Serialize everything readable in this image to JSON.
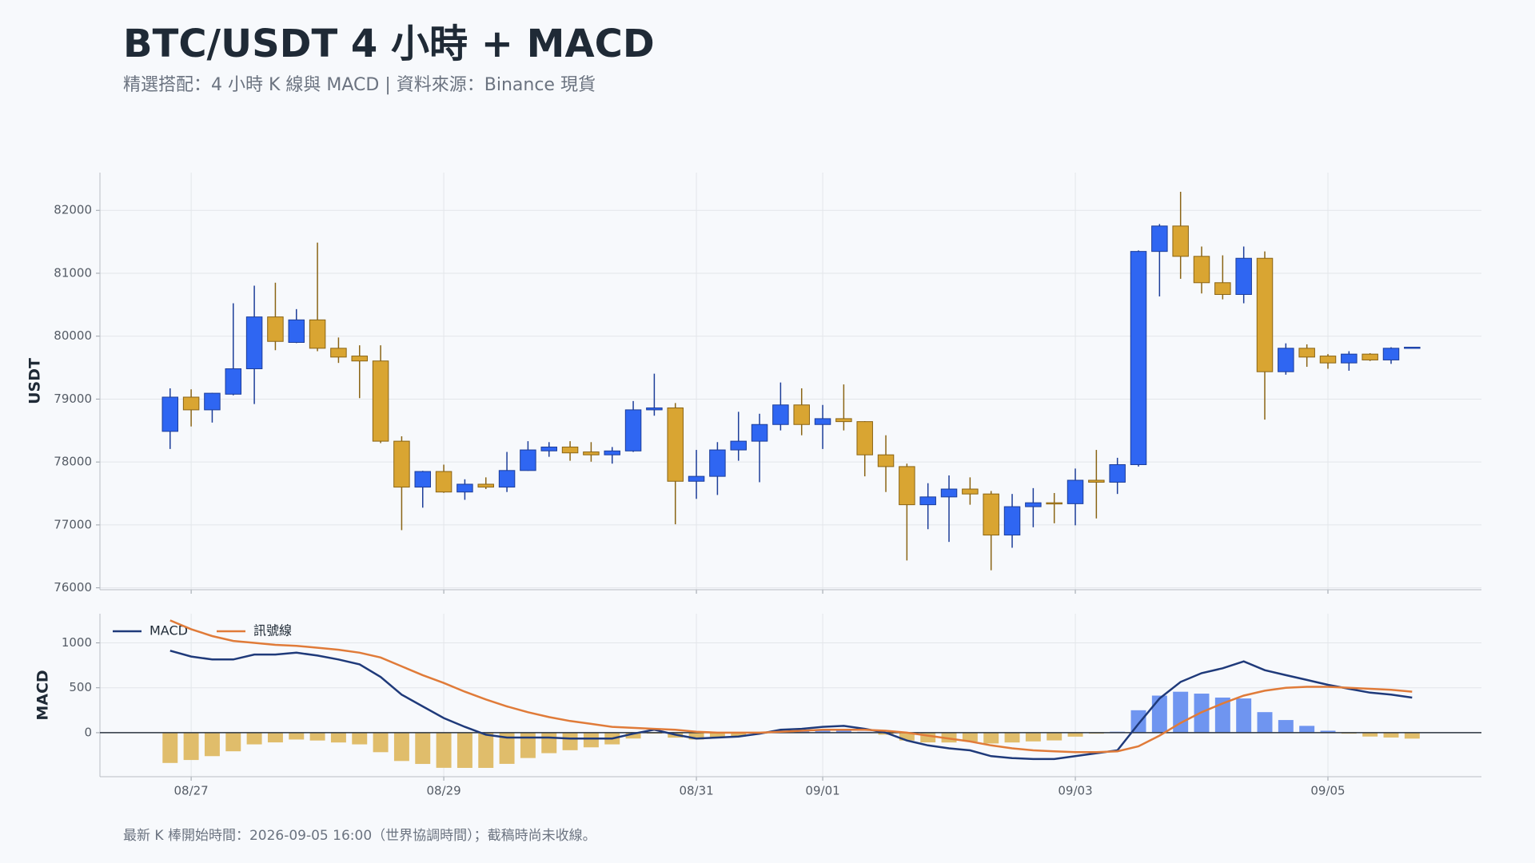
{
  "title": "BTC/USDT 4 小時 + MACD",
  "subtitle": "精選搭配：4 小時 K 線與 MACD | 資料來源：Binance 現貨",
  "footnote": "最新 K 棒開始時間：2026-09-05 16:00（世界協調時間）；截稿時尚未收線。",
  "chart_data": [
    {
      "type": "candlestick",
      "ylabel": "USDT",
      "x": [
        "08/26 20:00",
        "08/27 00:00",
        "08/27 04:00",
        "08/27 08:00",
        "08/27 12:00",
        "08/27 16:00",
        "08/27 20:00",
        "08/28 00:00",
        "08/28 04:00",
        "08/28 08:00",
        "08/28 12:00",
        "08/28 16:00",
        "08/28 20:00",
        "08/29 00:00",
        "08/29 04:00",
        "08/29 08:00",
        "08/29 12:00",
        "08/29 16:00",
        "08/29 20:00",
        "08/30 00:00",
        "08/30 04:00",
        "08/30 08:00",
        "08/30 12:00",
        "08/30 16:00",
        "08/30 20:00",
        "08/31 00:00",
        "08/31 04:00",
        "08/31 08:00",
        "08/31 12:00",
        "08/31 16:00",
        "08/31 20:00",
        "09/01 00:00",
        "09/01 04:00",
        "09/01 08:00",
        "09/01 12:00",
        "09/01 16:00",
        "09/01 20:00",
        "09/02 00:00",
        "09/02 04:00",
        "09/02 08:00",
        "09/02 12:00",
        "09/02 16:00",
        "09/02 20:00",
        "09/03 00:00",
        "09/03 04:00",
        "09/03 08:00",
        "09/03 12:00",
        "09/03 16:00",
        "09/03 20:00",
        "09/04 00:00",
        "09/04 04:00",
        "09/04 08:00",
        "09/04 12:00",
        "09/04 16:00",
        "09/04 20:00",
        "09/05 00:00",
        "09/05 04:00",
        "09/05 08:00",
        "09/05 12:00",
        "09/05 16:00"
      ],
      "open": [
        78487,
        79031,
        78829,
        79078,
        79482,
        80306,
        79901,
        80259,
        79808,
        79684,
        79606,
        78331,
        77601,
        77849,
        77523,
        77647,
        77601,
        77865,
        78177,
        78238,
        78160,
        78114,
        78176,
        78829,
        78860,
        77694,
        77772,
        78192,
        78331,
        78596,
        78907,
        78596,
        78689,
        78642,
        78114,
        77927,
        77321,
        77445,
        77570,
        77492,
        76839,
        77290,
        77352,
        77337,
        77710,
        77679,
        77958,
        81347,
        81751,
        81269,
        80850,
        80663,
        81238,
        79435,
        79808,
        79684,
        79575,
        79715,
        79622,
        79820
      ],
      "high": [
        79171,
        79155,
        79100,
        80523,
        80803,
        80850,
        80430,
        81487,
        79979,
        79855,
        79855,
        78409,
        77860,
        77958,
        77725,
        77756,
        78160,
        78331,
        78316,
        78331,
        78316,
        78238,
        78969,
        79404,
        78938,
        78192,
        78316,
        78798,
        78767,
        79264,
        79171,
        78907,
        79233,
        78650,
        78425,
        77974,
        77663,
        77787,
        77756,
        77539,
        77492,
        77585,
        77507,
        77896,
        78192,
        78067,
        81363,
        81782,
        82295,
        81425,
        81285,
        81425,
        81347,
        79886,
        79870,
        79715,
        79761,
        79730,
        79824,
        79830
      ],
      "low": [
        78207,
        78565,
        78627,
        79060,
        78922,
        79777,
        79890,
        79761,
        79575,
        79015,
        78300,
        76917,
        77274,
        77510,
        77399,
        77570,
        77523,
        77860,
        78083,
        78020,
        78005,
        77974,
        78160,
        78736,
        77010,
        77414,
        77476,
        78020,
        77679,
        78502,
        78425,
        78207,
        78502,
        77772,
        77523,
        76435,
        76932,
        76730,
        77321,
        76279,
        76637,
        76963,
        77026,
        76994,
        77103,
        77492,
        77927,
        80632,
        80912,
        80679,
        80585,
        80523,
        78673,
        79388,
        79513,
        79482,
        79451,
        79606,
        79560,
        79815
      ],
      "close": [
        79031,
        78829,
        79093,
        79482,
        80306,
        79917,
        80259,
        79808,
        79668,
        79606,
        78331,
        77601,
        77849,
        77523,
        77647,
        77601,
        77865,
        78192,
        78238,
        78145,
        78114,
        78176,
        78829,
        78860,
        77694,
        77772,
        78192,
        78331,
        78596,
        78907,
        78596,
        78689,
        78642,
        78114,
        77927,
        77321,
        77445,
        77570,
        77492,
        76839,
        77290,
        77352,
        77337,
        77710,
        77679,
        77958,
        81347,
        81751,
        81269,
        80850,
        80663,
        81238,
        79435,
        79808,
        79668,
        79575,
        79715,
        79622,
        79808,
        79825
      ],
      "up_color": "#2f66f2",
      "down_color": "#d9a532",
      "up_edge": "#1c3d99",
      "down_edge": "#8a6414",
      "xlim": [
        "08/26 06:40",
        "09/06 05:10"
      ],
      "ylim": [
        75970,
        82600
      ],
      "yticks": [
        76000,
        77000,
        78000,
        79000,
        80000,
        81000,
        82000
      ],
      "grid": true
    },
    {
      "type": "macd",
      "ylabel": "MACD",
      "series": [
        {
          "name": "MACD",
          "type": "line",
          "color": "#1f3a7a",
          "values": [
            913,
            848,
            815,
            815,
            870,
            870,
            891,
            859,
            815,
            761,
            620,
            424,
            293,
            163,
            65,
            -22,
            -54,
            -54,
            -54,
            -65,
            -65,
            -65,
            -11,
            33,
            -22,
            -65,
            -54,
            -43,
            -11,
            33,
            43,
            65,
            76,
            43,
            0,
            -87,
            -141,
            -174,
            -196,
            -261,
            -283,
            -293,
            -293,
            -261,
            -228,
            -196,
            98,
            380,
            565,
            663,
            717,
            794,
            696,
            641,
            587,
            533,
            489,
            446,
            424,
            391
          ]
        },
        {
          "name": "訊號線",
          "type": "line",
          "color": "#e07b39",
          "values": [
            1250,
            1152,
            1076,
            1022,
            1000,
            978,
            967,
            946,
            924,
            891,
            837,
            739,
            641,
            554,
            457,
            370,
            293,
            228,
            174,
            130,
            98,
            65,
            54,
            43,
            33,
            11,
            0,
            0,
            0,
            11,
            22,
            33,
            33,
            33,
            22,
            0,
            -33,
            -65,
            -98,
            -141,
            -174,
            -196,
            -207,
            -217,
            -217,
            -207,
            -152,
            -33,
            109,
            228,
            326,
            413,
            467,
            500,
            511,
            511,
            500,
            489,
            478,
            457
          ]
        },
        {
          "type": "bar",
          "up_color": "#6f95f0",
          "down_color": "#e0bd6b",
          "values": [
            -337,
            -304,
            -261,
            -207,
            -130,
            -108,
            -76,
            -87,
            -109,
            -130,
            -217,
            -315,
            -348,
            -391,
            -392,
            -392,
            -347,
            -282,
            -228,
            -195,
            -163,
            -130,
            -65,
            -10,
            -55,
            -76,
            -54,
            -43,
            -11,
            22,
            21,
            32,
            43,
            10,
            -22,
            -87,
            -108,
            -109,
            -98,
            -120,
            -109,
            -97,
            -86,
            -44,
            -11,
            11,
            250,
            413,
            456,
            435,
            391,
            381,
            229,
            141,
            76,
            22,
            -11,
            -43,
            -54,
            -66
          ]
        }
      ],
      "zero_line": 0,
      "ylim": [
        -490,
        1325
      ],
      "yticks": [
        0,
        500,
        1000
      ],
      "xticks": [
        {
          "value": "08/27 00:00",
          "label": "08/27"
        },
        {
          "value": "08/29 00:00",
          "label": "08/29"
        },
        {
          "value": "08/31 00:00",
          "label": "08/31"
        },
        {
          "value": "09/01 00:00",
          "label": "09/01"
        },
        {
          "value": "09/03 00:00",
          "label": "09/03"
        },
        {
          "value": "09/05 00:00",
          "label": "09/05"
        }
      ],
      "grid": true,
      "legend": "upper left"
    }
  ]
}
